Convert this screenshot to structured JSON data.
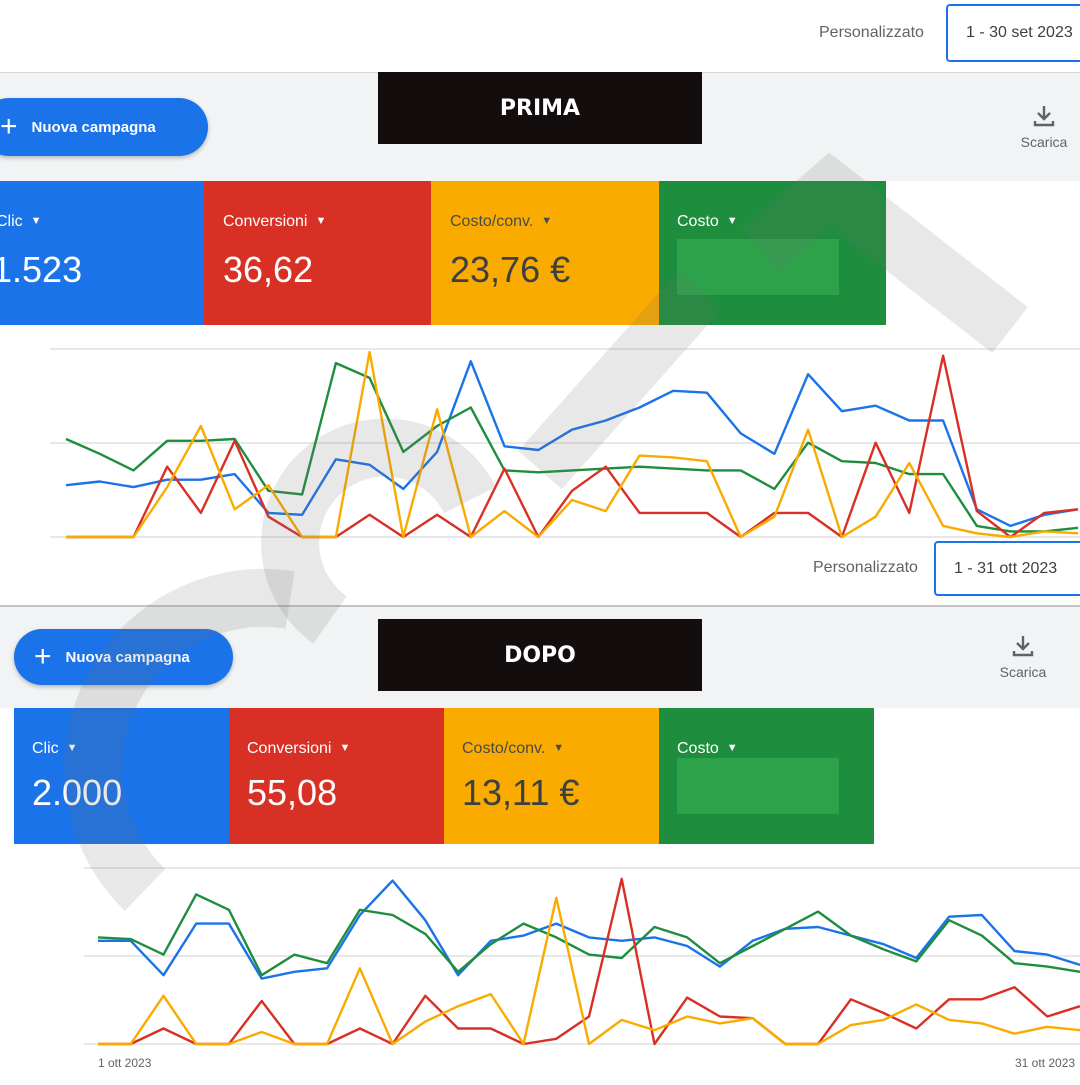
{
  "top": {
    "range_label": "Personalizzato",
    "date_range": "1 - 30 set 2023"
  },
  "before": {
    "banner": "PRIMA",
    "new_campaign": "Nuova campagna",
    "download": "Scarica",
    "metrics": [
      {
        "label": "Clic",
        "value": "1.523",
        "color": "#1a73e8"
      },
      {
        "label": "Conversioni",
        "value": "36,62",
        "color": "#d93025"
      },
      {
        "label": "Costo/conv.",
        "value": "23,76 €",
        "color": "#f9ab00"
      },
      {
        "label": "Costo",
        "value": "",
        "color": "#1e8e3e"
      }
    ],
    "range_label": "Personalizzato",
    "date_range": "1 - 31 ott 2023",
    "chart_data": {
      "type": "line",
      "x": [
        1,
        2,
        3,
        4,
        5,
        6,
        7,
        8,
        9,
        10,
        11,
        12,
        13,
        14,
        15,
        16,
        17,
        18,
        19,
        20,
        21,
        22,
        23,
        24,
        25,
        26,
        27,
        28,
        29,
        30,
        31
      ],
      "ylim": [
        0,
        100
      ],
      "series": [
        {
          "color": "#1a73e8",
          "values": [
            28,
            30,
            27,
            31,
            31,
            34,
            13,
            12,
            42,
            39,
            26,
            46,
            95,
            49,
            47,
            58,
            63,
            70,
            79,
            78,
            56,
            45,
            88,
            68,
            71,
            63,
            63,
            15,
            6,
            12,
            15
          ]
        },
        {
          "color": "#1e8e3e",
          "values": [
            53,
            45,
            36,
            52,
            52,
            53,
            25,
            23,
            94,
            86,
            46,
            60,
            70,
            36,
            35,
            36,
            37,
            38,
            37,
            36,
            36,
            26,
            51,
            41,
            40,
            34,
            34,
            6,
            3,
            3,
            5
          ]
        },
        {
          "color": "#d93025",
          "values": [
            0,
            0,
            0,
            38,
            13,
            52,
            11,
            0,
            0,
            12,
            0,
            12,
            0,
            37,
            0,
            25,
            38,
            13,
            13,
            13,
            0,
            13,
            13,
            0,
            51,
            13,
            98,
            14,
            0,
            13,
            15
          ]
        },
        {
          "color": "#f9ab00",
          "values": [
            0,
            0,
            0,
            27,
            60,
            15,
            28,
            0,
            0,
            100,
            0,
            69,
            0,
            14,
            0,
            20,
            14,
            44,
            43,
            41,
            0,
            11,
            58,
            0,
            11,
            40,
            6,
            2,
            0,
            3,
            2
          ]
        }
      ]
    }
  },
  "after": {
    "banner": "DOPO",
    "new_campaign": "Nuova campagna",
    "download": "Scarica",
    "metrics": [
      {
        "label": "Clic",
        "value": "2.000",
        "color": "#1a73e8"
      },
      {
        "label": "Conversioni",
        "value": "55,08",
        "color": "#d93025"
      },
      {
        "label": "Costo/conv.",
        "value": "13,11 €",
        "color": "#f9ab00"
      },
      {
        "label": "Costo",
        "value": "",
        "color": "#1e8e3e"
      }
    ],
    "x_start_label": "1 ott 2023",
    "x_end_label": "31 ott 2023",
    "chart_data": {
      "type": "line",
      "x": [
        1,
        2,
        3,
        4,
        5,
        6,
        7,
        8,
        9,
        10,
        11,
        12,
        13,
        14,
        15,
        16,
        17,
        18,
        19,
        20,
        21,
        22,
        23,
        24,
        25,
        26,
        27,
        28,
        29,
        30,
        31
      ],
      "ylim": [
        0,
        100
      ],
      "series": [
        {
          "color": "#1a73e8",
          "values": [
            60,
            60,
            40,
            70,
            70,
            38,
            42,
            44,
            75,
            95,
            72,
            40,
            60,
            63,
            70,
            62,
            60,
            62,
            57,
            45,
            60,
            67,
            68,
            63,
            58,
            50,
            74,
            75,
            54,
            52,
            46
          ]
        },
        {
          "color": "#1e8e3e",
          "values": [
            62,
            61,
            52,
            87,
            78,
            40,
            52,
            47,
            78,
            75,
            64,
            42,
            58,
            70,
            62,
            52,
            50,
            68,
            62,
            47,
            57,
            67,
            77,
            63,
            55,
            48,
            72,
            63,
            47,
            45,
            42
          ]
        },
        {
          "color": "#d93025",
          "values": [
            0,
            0,
            9,
            0,
            0,
            25,
            0,
            0,
            9,
            0,
            28,
            9,
            9,
            0,
            3,
            16,
            96,
            0,
            27,
            16,
            15,
            0,
            0,
            26,
            18,
            9,
            26,
            26,
            33,
            16,
            22
          ]
        },
        {
          "color": "#f9ab00",
          "values": [
            0,
            0,
            28,
            0,
            0,
            7,
            0,
            0,
            44,
            0,
            13,
            22,
            29,
            0,
            85,
            0,
            14,
            8,
            16,
            12,
            15,
            0,
            0,
            11,
            14,
            23,
            14,
            12,
            6,
            10,
            8
          ]
        }
      ]
    }
  }
}
